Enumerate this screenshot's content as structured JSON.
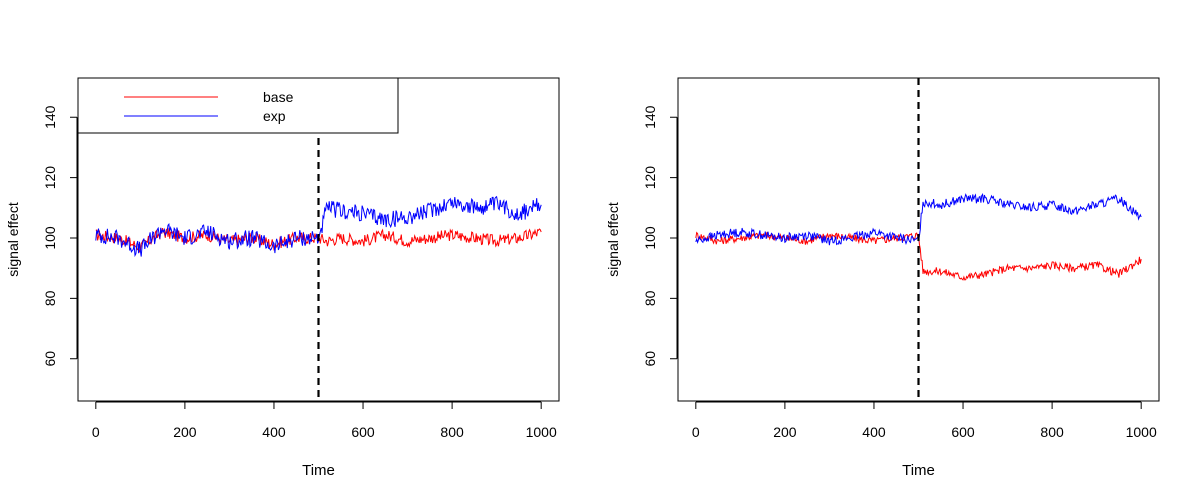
{
  "chart_data": [
    {
      "type": "line",
      "title": "",
      "xlabel": "Time",
      "ylabel": "signal effect",
      "xlim": [
        -40,
        1040
      ],
      "ylim": [
        46,
        153
      ],
      "x_ticks": [
        0,
        200,
        400,
        600,
        800,
        1000
      ],
      "y_ticks": [
        60,
        80,
        100,
        120,
        140
      ],
      "vline": {
        "x": 500,
        "style": "dashed",
        "color": "#000000"
      },
      "legend": {
        "position": "top-left",
        "entries": [
          {
            "label": "base",
            "color": "#ff0000"
          },
          {
            "label": "exp",
            "color": "#0000ff"
          }
        ]
      },
      "grid": false,
      "series": [
        {
          "name": "base",
          "color": "#ff0000",
          "x": [
            0,
            50,
            100,
            150,
            200,
            250,
            300,
            350,
            400,
            450,
            500,
            520,
            550,
            600,
            650,
            700,
            750,
            800,
            850,
            900,
            950,
            1000
          ],
          "y": [
            101,
            100,
            97,
            102,
            100,
            101,
            99,
            100,
            98,
            100,
            100,
            99,
            100,
            99,
            101,
            99,
            100,
            101,
            100,
            99,
            100,
            102
          ]
        },
        {
          "name": "exp",
          "color": "#0000ff",
          "x": [
            0,
            50,
            100,
            150,
            200,
            250,
            300,
            350,
            400,
            450,
            500,
            520,
            550,
            600,
            650,
            700,
            750,
            800,
            850,
            900,
            950,
            1000
          ],
          "y": [
            101,
            100,
            96,
            103,
            100,
            102,
            99,
            100,
            97,
            100,
            100,
            110,
            109,
            108,
            106,
            107,
            109,
            112,
            110,
            111,
            108,
            111
          ]
        }
      ]
    },
    {
      "type": "line",
      "title": "",
      "xlabel": "Time",
      "ylabel": "signal effect",
      "xlim": [
        -40,
        1040
      ],
      "ylim": [
        46,
        153
      ],
      "x_ticks": [
        0,
        200,
        400,
        600,
        800,
        1000
      ],
      "y_ticks": [
        60,
        80,
        100,
        120,
        140
      ],
      "vline": {
        "x": 500,
        "style": "dashed",
        "color": "#000000"
      },
      "grid": false,
      "series": [
        {
          "color": "#ff0000",
          "x": [
            0,
            50,
            100,
            150,
            200,
            250,
            300,
            350,
            400,
            450,
            500,
            510,
            550,
            600,
            650,
            700,
            750,
            800,
            850,
            900,
            950,
            1000
          ],
          "y": [
            101,
            99,
            100,
            101,
            100,
            99,
            101,
            100,
            99,
            100,
            101,
            89,
            89,
            87,
            88,
            90,
            90,
            91,
            90,
            91,
            88,
            93
          ]
        },
        {
          "color": "#0000ff",
          "x": [
            0,
            50,
            100,
            150,
            200,
            250,
            300,
            350,
            400,
            450,
            500,
            510,
            550,
            600,
            650,
            700,
            750,
            800,
            850,
            900,
            950,
            1000
          ],
          "y": [
            99,
            101,
            102,
            101,
            100,
            101,
            99,
            100,
            102,
            100,
            99,
            112,
            111,
            113,
            113,
            111,
            110,
            111,
            109,
            111,
            113,
            107
          ]
        }
      ]
    }
  ]
}
